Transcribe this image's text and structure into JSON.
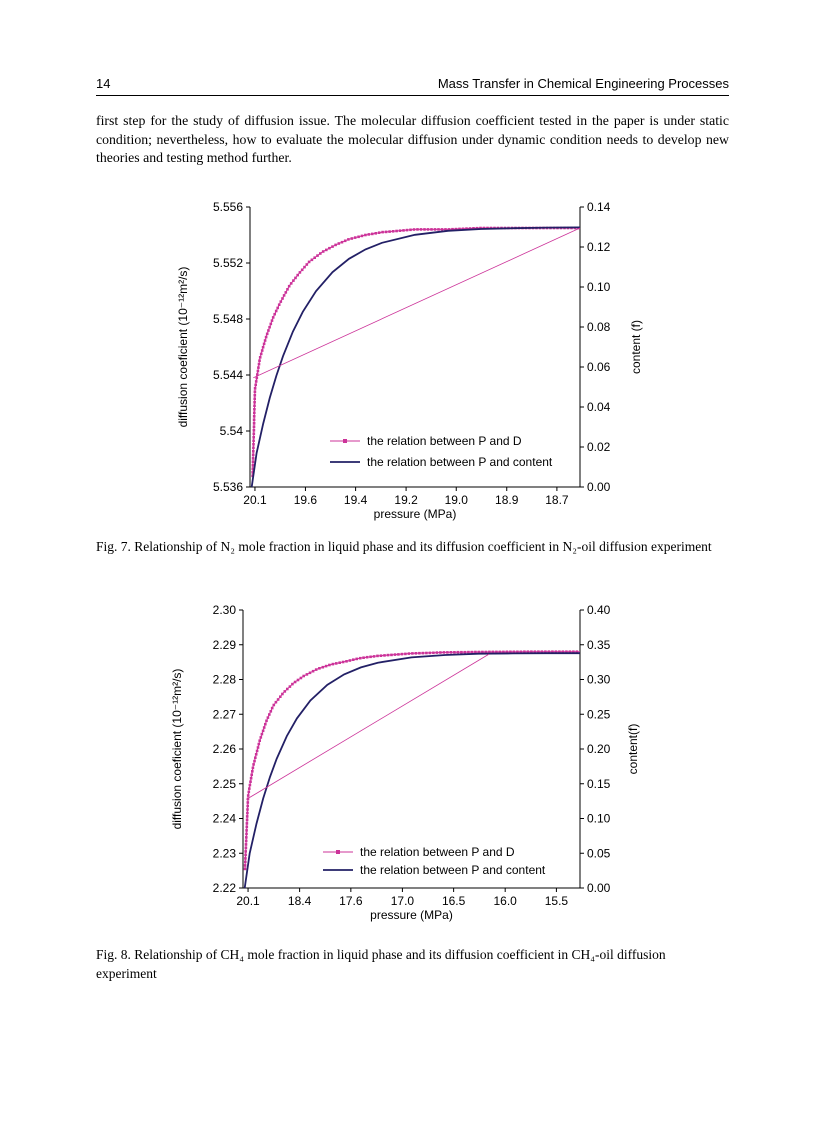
{
  "page": {
    "header": {
      "page_number": "14",
      "running_title": "Mass Transfer in Chemical Engineering Processes"
    },
    "paragraph": "first step for the study of diffusion issue. The molecular diffusion coefficient tested in the paper is under static condition; nevertheless, how to evaluate the molecular diffusion under dynamic condition needs to develop new theories and testing method further.",
    "fig7_caption": "Fig. 7. Relationship of N₂ mole fraction in liquid phase and its diffusion coefficient in N₂-oil diffusion experiment",
    "fig8_caption": "Fig. 8. Relationship of CH₄ mole fraction in liquid phase and its diffusion coefficient in CH₄-oil diffusion experiment"
  },
  "chart_data": [
    {
      "id": "fig7",
      "type": "line",
      "xlabel": "pressure (MPa)",
      "ylabel_left": "diffusion coeficient (10⁻¹²m²/s)",
      "ylabel_right": "content (f)",
      "x_ticks": [
        {
          "label": "20.1",
          "t": 0.015
        },
        {
          "label": "19.6",
          "t": 0.168
        },
        {
          "label": "19.4",
          "t": 0.32
        },
        {
          "label": "19.2",
          "t": 0.473
        },
        {
          "label": "19.0",
          "t": 0.625
        },
        {
          "label": "18.9",
          "t": 0.778
        },
        {
          "label": "18.7",
          "t": 0.93
        }
      ],
      "y_left": {
        "min": 5.536,
        "max": 5.556,
        "tick_values": [
          5.556,
          5.552,
          5.548,
          5.544,
          5.54,
          5.536
        ],
        "tick_labels": [
          "5.556",
          "5.552",
          "5.548",
          "5.544",
          "5.54",
          "5.536"
        ]
      },
      "y_right": {
        "min": 0,
        "max": 0.14,
        "tick_values": [
          0.14,
          0.12,
          0.1,
          0.08,
          0.06,
          0.04,
          0.02,
          0
        ],
        "tick_labels": [
          "0.14",
          "0.12",
          "0.10",
          "0.08",
          "0.06",
          "0.04",
          "0.02",
          "0.00"
        ]
      },
      "series": [
        {
          "name": "the relation between P and D",
          "axis": "left",
          "color": "#cc3399",
          "marker": "square",
          "width": 1,
          "points": [
            [
              0.008,
              5.5368
            ],
            [
              0.015,
              5.543
            ],
            [
              0.03,
              5.5452
            ],
            [
              0.05,
              5.5468
            ],
            [
              0.07,
              5.5481
            ],
            [
              0.09,
              5.5491
            ],
            [
              0.12,
              5.5504
            ],
            [
              0.15,
              5.5513
            ],
            [
              0.18,
              5.5521
            ],
            [
              0.22,
              5.5528
            ],
            [
              0.26,
              5.5533
            ],
            [
              0.3,
              5.5537
            ],
            [
              0.35,
              5.554
            ],
            [
              0.4,
              5.5542
            ],
            [
              0.5,
              5.5544
            ],
            [
              0.6,
              5.5544
            ],
            [
              0.7,
              5.5545
            ],
            [
              0.85,
              5.5545
            ],
            [
              1,
              5.5545
            ]
          ]
        },
        {
          "name": "the relation between P and content",
          "axis": "right",
          "color": "#232066",
          "marker": "none",
          "width": 1.8,
          "points": [
            [
              0.005,
              0
            ],
            [
              0.02,
              0.017
            ],
            [
              0.04,
              0.0317
            ],
            [
              0.06,
              0.0446
            ],
            [
              0.08,
              0.0557
            ],
            [
              0.1,
              0.0654
            ],
            [
              0.13,
              0.0777
            ],
            [
              0.16,
              0.0876
            ],
            [
              0.2,
              0.0979
            ],
            [
              0.25,
              0.1074
            ],
            [
              0.3,
              0.1141
            ],
            [
              0.35,
              0.1188
            ],
            [
              0.4,
              0.1221
            ],
            [
              0.5,
              0.1261
            ],
            [
              0.6,
              0.1281
            ],
            [
              0.7,
              0.129
            ],
            [
              0.8,
              0.1294
            ],
            [
              0.9,
              0.1297
            ],
            [
              1,
              0.1298
            ]
          ]
        },
        {
          "name": "P-D straight connector",
          "legend": false,
          "axis": "left",
          "color": "#cc3399",
          "marker": "none",
          "width": 0.8,
          "points": [
            [
              0.01,
              5.5438
            ],
            [
              1,
              5.5545
            ]
          ]
        }
      ]
    },
    {
      "id": "fig8",
      "type": "line",
      "xlabel": "pressure (MPa)",
      "ylabel_left": "diffusion coeficient (10⁻¹²m²/s)",
      "ylabel_right": "content(f)",
      "x_ticks": [
        {
          "label": "20.1",
          "t": 0.015
        },
        {
          "label": "18.4",
          "t": 0.168
        },
        {
          "label": "17.6",
          "t": 0.32
        },
        {
          "label": "17.0",
          "t": 0.473
        },
        {
          "label": "16.5",
          "t": 0.625
        },
        {
          "label": "16.0",
          "t": 0.778
        },
        {
          "label": "15.5",
          "t": 0.93
        }
      ],
      "y_left": {
        "min": 2.22,
        "max": 2.3,
        "tick_values": [
          2.3,
          2.29,
          2.28,
          2.27,
          2.26,
          2.25,
          2.24,
          2.23,
          2.22
        ],
        "tick_labels": [
          "2.30",
          "2.29",
          "2.28",
          "2.27",
          "2.26",
          "2.25",
          "2.24",
          "2.23",
          "2.22"
        ]
      },
      "y_right": {
        "min": 0,
        "max": 0.4,
        "tick_values": [
          0.4,
          0.35,
          0.3,
          0.25,
          0.2,
          0.15,
          0.1,
          0.05,
          0
        ],
        "tick_labels": [
          "0.40",
          "0.35",
          "0.30",
          "0.25",
          "0.20",
          "0.15",
          "0.10",
          "0.05",
          "0.00"
        ]
      },
      "series": [
        {
          "name": "the relation between P and D",
          "axis": "left",
          "color": "#cc3399",
          "marker": "square",
          "width": 1,
          "points": [
            [
              0.006,
              2.2255
            ],
            [
              0.015,
              2.2465
            ],
            [
              0.03,
              2.255
            ],
            [
              0.05,
              2.2625
            ],
            [
              0.07,
              2.2682
            ],
            [
              0.09,
              2.2725
            ],
            [
              0.12,
              2.2762
            ],
            [
              0.15,
              2.279
            ],
            [
              0.18,
              2.281
            ],
            [
              0.22,
              2.283
            ],
            [
              0.26,
              2.2843
            ],
            [
              0.3,
              2.2851
            ],
            [
              0.35,
              2.2862
            ],
            [
              0.4,
              2.2868
            ],
            [
              0.5,
              2.2875
            ],
            [
              0.6,
              2.2878
            ],
            [
              0.7,
              2.2879
            ],
            [
              0.85,
              2.288
            ],
            [
              1,
              2.288
            ]
          ]
        },
        {
          "name": "the relation between P and content",
          "axis": "right",
          "color": "#232066",
          "marker": "none",
          "width": 1.8,
          "points": [
            [
              0.005,
              0
            ],
            [
              0.02,
              0.05
            ],
            [
              0.04,
              0.0926
            ],
            [
              0.06,
              0.1289
            ],
            [
              0.08,
              0.1598
            ],
            [
              0.1,
              0.1861
            ],
            [
              0.13,
              0.2186
            ],
            [
              0.16,
              0.244
            ],
            [
              0.2,
              0.2698
            ],
            [
              0.25,
              0.2923
            ],
            [
              0.3,
              0.3073
            ],
            [
              0.35,
              0.3174
            ],
            [
              0.4,
              0.3242
            ],
            [
              0.5,
              0.3318
            ],
            [
              0.6,
              0.3352
            ],
            [
              0.7,
              0.3371
            ],
            [
              0.8,
              0.3375
            ],
            [
              0.9,
              0.3378
            ],
            [
              1,
              0.3379
            ]
          ]
        },
        {
          "name": "P-D straight connector",
          "legend": false,
          "axis": "left",
          "color": "#cc3399",
          "marker": "none",
          "width": 0.8,
          "points": [
            [
              0.01,
              2.2455
            ],
            [
              0.73,
              2.2873
            ]
          ]
        }
      ]
    }
  ]
}
